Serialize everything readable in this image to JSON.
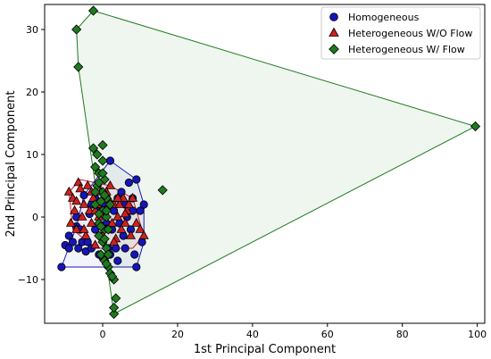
{
  "chart_data": {
    "type": "scatter",
    "title": "",
    "xlabel": "1st Principal Component",
    "ylabel": "2nd Principal Component",
    "xlim": [
      -15.5,
      102
    ],
    "ylim": [
      -17,
      34
    ],
    "x_ticks": [
      0,
      20,
      40,
      60,
      80,
      100
    ],
    "y_ticks": [
      -10,
      0,
      10,
      20,
      30
    ],
    "grid": false,
    "legend_position": "top-right",
    "series": [
      {
        "name": "Homogeneous",
        "marker": "circle",
        "color": "#1515b8",
        "hull": [
          [
            -11,
            -8
          ],
          [
            -7,
            -1.5
          ],
          [
            -5,
            3.5
          ],
          [
            2,
            9
          ],
          [
            9,
            6
          ],
          [
            11,
            2
          ],
          [
            11,
            -4
          ],
          [
            9,
            -8
          ],
          [
            -11,
            -8
          ]
        ],
        "points": [
          [
            -11,
            -8
          ],
          [
            -10,
            -4.5
          ],
          [
            -9,
            -5
          ],
          [
            -8,
            -4
          ],
          [
            -7,
            -1.5
          ],
          [
            -6.5,
            -5
          ],
          [
            -5.5,
            -4
          ],
          [
            -5,
            3.5
          ],
          [
            -4.5,
            -5.5
          ],
          [
            -4,
            -4
          ],
          [
            -3.5,
            0.5
          ],
          [
            -3,
            -5
          ],
          [
            -2,
            -2
          ],
          [
            -1.5,
            1
          ],
          [
            -1,
            -6
          ],
          [
            -0.5,
            -3
          ],
          [
            0,
            -6.5
          ],
          [
            0.5,
            2
          ],
          [
            1,
            -1
          ],
          [
            1.5,
            -5
          ],
          [
            2,
            9
          ],
          [
            2.5,
            -2
          ],
          [
            3,
            1
          ],
          [
            3.5,
            -5
          ],
          [
            4,
            3
          ],
          [
            4.5,
            -1
          ],
          [
            5,
            4
          ],
          [
            5.5,
            -3
          ],
          [
            6,
            2
          ],
          [
            6.5,
            0
          ],
          [
            7,
            5.5
          ],
          [
            7.5,
            -2
          ],
          [
            8,
            3
          ],
          [
            8.5,
            -6
          ],
          [
            9,
            6
          ],
          [
            9,
            -8
          ],
          [
            10,
            1
          ],
          [
            10.5,
            -4
          ],
          [
            11,
            2
          ],
          [
            -9,
            -3
          ],
          [
            -6,
            -2
          ],
          [
            -3,
            2
          ],
          [
            -2,
            3
          ],
          [
            2,
            -6
          ],
          [
            4,
            -7
          ],
          [
            6,
            -5
          ],
          [
            8,
            1
          ],
          [
            -7,
            0
          ]
        ]
      },
      {
        "name": "Heterogeneous W/O Flow",
        "marker": "triangle",
        "color": "#d01f1f",
        "hull": [
          [
            -9,
            4
          ],
          [
            -6,
            6
          ],
          [
            2,
            5
          ],
          [
            8,
            3
          ],
          [
            11,
            -3
          ],
          [
            8,
            -5
          ],
          [
            -2,
            -5
          ],
          [
            -8,
            -2
          ],
          [
            -9,
            4
          ]
        ],
        "points": [
          [
            -9,
            4
          ],
          [
            -8.5,
            -1
          ],
          [
            -8,
            3
          ],
          [
            -7.5,
            1
          ],
          [
            -7,
            -2
          ],
          [
            -6.5,
            5.5
          ],
          [
            -6,
            4.5
          ],
          [
            -5.5,
            0
          ],
          [
            -5,
            2
          ],
          [
            -4.5,
            -3
          ],
          [
            -4,
            5
          ],
          [
            -3.5,
            1
          ],
          [
            -3,
            -1
          ],
          [
            -2.5,
            3
          ],
          [
            -2,
            -4.5
          ],
          [
            -1.5,
            2
          ],
          [
            -1,
            0
          ],
          [
            -0.5,
            4
          ],
          [
            0,
            -3
          ],
          [
            0.5,
            1
          ],
          [
            1,
            -2
          ],
          [
            1.5,
            3
          ],
          [
            2,
            5
          ],
          [
            2.5,
            -1
          ],
          [
            3,
            2
          ],
          [
            3.5,
            -3.5
          ],
          [
            4,
            0
          ],
          [
            4.5,
            2
          ],
          [
            5,
            -2
          ],
          [
            5.5,
            3
          ],
          [
            6,
            -1
          ],
          [
            6.5,
            1
          ],
          [
            7,
            2
          ],
          [
            7.5,
            -3
          ],
          [
            8,
            3
          ],
          [
            9,
            -1
          ],
          [
            10,
            -2
          ],
          [
            11,
            -3
          ],
          [
            -7,
            2.5
          ],
          [
            -3,
            4
          ],
          [
            1,
            4
          ],
          [
            6,
            0.5
          ],
          [
            3,
            -4
          ],
          [
            -5,
            -2
          ],
          [
            -2,
            1
          ],
          [
            4,
            3
          ]
        ]
      },
      {
        "name": "Heterogeneous W/ Flow",
        "marker": "diamond",
        "color": "#1e7a1e",
        "hull": [
          [
            -2.5,
            33
          ],
          [
            99.5,
            14.5
          ],
          [
            3,
            -15.5
          ],
          [
            -6.5,
            24
          ],
          [
            -7,
            30
          ],
          [
            -2.5,
            33
          ]
        ],
        "points": [
          [
            -2.5,
            33
          ],
          [
            -7,
            30
          ],
          [
            -6.5,
            24
          ],
          [
            99.5,
            14.5
          ],
          [
            16,
            4.3
          ],
          [
            3,
            -15.5
          ],
          [
            3,
            -14.5
          ],
          [
            3.5,
            -13
          ],
          [
            -2.5,
            11
          ],
          [
            -1.5,
            10
          ],
          [
            0,
            11.5
          ],
          [
            -2,
            8
          ],
          [
            -1,
            7
          ],
          [
            0.5,
            6
          ],
          [
            -1.5,
            5
          ],
          [
            0,
            4
          ],
          [
            1,
            3
          ],
          [
            -2,
            2
          ],
          [
            0,
            1
          ],
          [
            1,
            0
          ],
          [
            -1,
            -1
          ],
          [
            0.5,
            -2
          ],
          [
            -1,
            -3
          ],
          [
            0,
            -4
          ],
          [
            1,
            -5
          ],
          [
            -0.5,
            -6
          ],
          [
            0.5,
            -7
          ],
          [
            1.5,
            -8
          ],
          [
            2,
            -9
          ],
          [
            3,
            -10
          ],
          [
            2.5,
            -9.5
          ],
          [
            -1,
            0.5
          ],
          [
            -0.5,
            2.5
          ],
          [
            0.5,
            3.5
          ],
          [
            -1,
            5.5
          ],
          [
            0,
            7
          ],
          [
            1,
            1
          ],
          [
            -0.5,
            -1.5
          ],
          [
            0.5,
            -3.5
          ],
          [
            1.5,
            -6
          ],
          [
            2,
            2
          ],
          [
            1.5,
            -2
          ],
          [
            -2,
            4
          ],
          [
            0,
            9
          ],
          [
            1,
            -7.5
          ]
        ]
      }
    ]
  }
}
